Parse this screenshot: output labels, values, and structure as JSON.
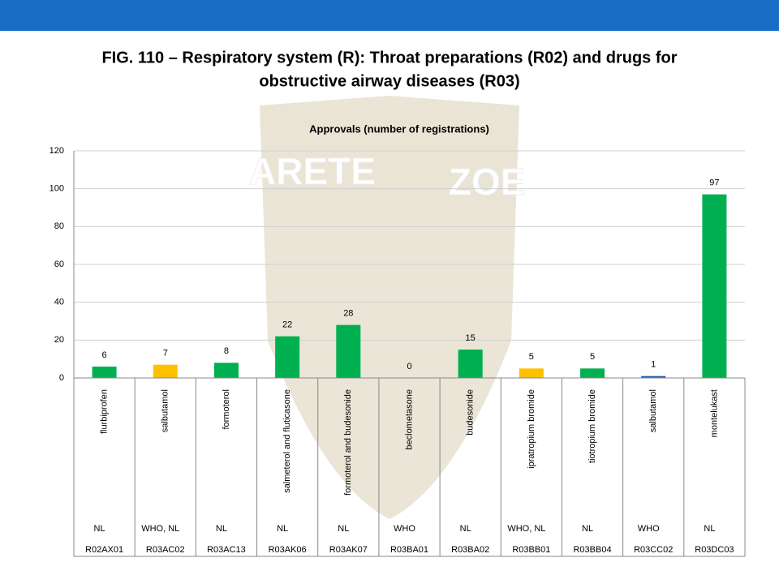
{
  "chart_data": {
    "type": "bar",
    "title": "FIG. 110 – Respiratory system (R): Throat preparations (R02) and drugs for",
    "title_line2": "obstructive airway diseases (R03)",
    "subtitle": "Approvals (number of registrations)",
    "watermark": [
      "ARETE",
      "ZOE"
    ],
    "categories": [
      "flurbiprofen",
      "salbutamol",
      "formoterol",
      "salmeterol and fluticasone",
      "formoterol and budesonide",
      "beclometasone",
      "budesonide",
      "ipratropium bromide",
      "tiotropium bromide",
      "salbutamol",
      "montelukast"
    ],
    "sources": [
      "NL",
      "WHO, NL",
      "NL",
      "NL",
      "NL",
      "WHO",
      "NL",
      "WHO, NL",
      "NL",
      "WHO",
      "NL"
    ],
    "codes": [
      "R02AX01",
      "R03AC02",
      "R03AC13",
      "R03AK06",
      "R03AK07",
      "R03BA01",
      "R03BA02",
      "R03BB01",
      "R03BB04",
      "R03CC02",
      "R03DC03"
    ],
    "values": [
      6,
      7,
      8,
      22,
      28,
      0,
      15,
      5,
      5,
      1,
      97
    ],
    "colors": [
      "#00b050",
      "#ffc000",
      "#00b050",
      "#00b050",
      "#00b050",
      "#00b050",
      "#00b050",
      "#ffc000",
      "#00b050",
      "#1f5fa8",
      "#00b050"
    ],
    "ylim": [
      0,
      120
    ],
    "yticks": [
      0,
      20,
      40,
      60,
      80,
      100,
      120
    ],
    "grid": true
  }
}
